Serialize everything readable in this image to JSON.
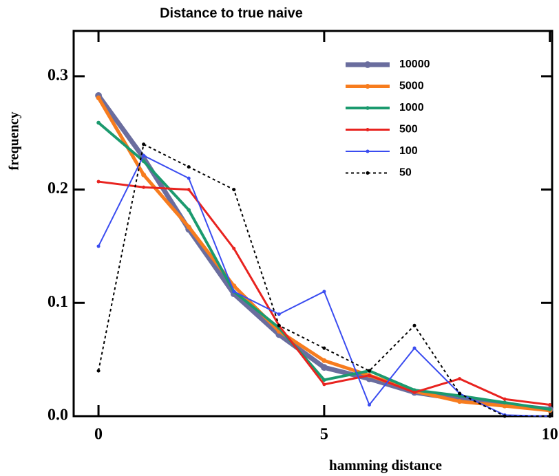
{
  "chart_data": {
    "type": "line",
    "title": "Distance to true naive",
    "x_label": "hamming distance",
    "y_label": "frequency",
    "x": [
      0,
      1,
      2,
      3,
      4,
      5,
      6,
      7,
      8,
      9,
      10
    ],
    "xlim": [
      -0.55,
      10.05
    ],
    "ylim": [
      0,
      0.34
    ],
    "xticks": [
      0,
      5,
      10
    ],
    "yticks": [
      {
        "value": 0,
        "label": "0.0"
      },
      {
        "value": 0.1,
        "label": "0.1"
      },
      {
        "value": 0.2,
        "label": "0.2"
      },
      {
        "value": 0.3,
        "label": "0.3"
      }
    ],
    "legend": "upper right",
    "series": [
      {
        "name": "10000",
        "color": "#6a6d9e",
        "linewidth": 7,
        "dashed": false,
        "values": [
          0.283,
          0.228,
          0.165,
          0.108,
          0.072,
          0.043,
          0.033,
          0.021,
          0.015,
          0.01,
          0.006
        ]
      },
      {
        "name": "5000",
        "color": "#f77c1e",
        "linewidth": 5,
        "dashed": false,
        "values": [
          0.281,
          0.213,
          0.167,
          0.115,
          0.075,
          0.049,
          0.036,
          0.022,
          0.013,
          0.009,
          0.005
        ]
      },
      {
        "name": "1000",
        "color": "#1b9a6e",
        "linewidth": 4,
        "dashed": false,
        "values": [
          0.259,
          0.225,
          0.182,
          0.11,
          0.078,
          0.032,
          0.04,
          0.023,
          0.018,
          0.012,
          0.006
        ]
      },
      {
        "name": "500",
        "color": "#e8231f",
        "linewidth": 3,
        "dashed": false,
        "values": [
          0.207,
          0.202,
          0.2,
          0.148,
          0.08,
          0.028,
          0.036,
          0.021,
          0.033,
          0.015,
          0.01
        ]
      },
      {
        "name": "100",
        "color": "#3a4cf0",
        "linewidth": 2,
        "dashed": false,
        "values": [
          0.15,
          0.23,
          0.21,
          0.11,
          0.09,
          0.11,
          0.01,
          0.06,
          0.02,
          0.001,
          0.0
        ]
      },
      {
        "name": "50",
        "color": "#000000",
        "linewidth": 2,
        "dashed": true,
        "values": [
          0.04,
          0.24,
          0.22,
          0.2,
          0.08,
          0.06,
          0.04,
          0.08,
          0.02,
          0.0,
          0.0
        ]
      }
    ]
  }
}
